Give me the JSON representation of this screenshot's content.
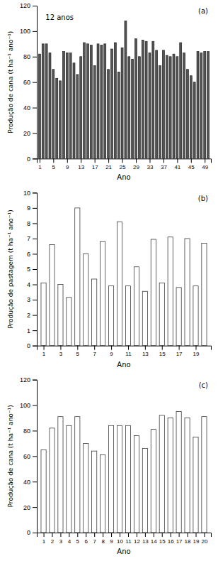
{
  "chart_data": [
    {
      "type": "bar",
      "title": "(a)",
      "annotations": [
        "12 anos"
      ],
      "xlabel": "Ano",
      "ylabel": "Produção de cana (t ha⁻¹ ano⁻¹)",
      "color": "#555555",
      "x": [
        1,
        2,
        3,
        4,
        5,
        6,
        7,
        8,
        9,
        10,
        11,
        12,
        13,
        14,
        15,
        16,
        17,
        18,
        19,
        20,
        21,
        22,
        23,
        24,
        25,
        26,
        27,
        28,
        29,
        30,
        31,
        32,
        33,
        34,
        35,
        36,
        37,
        38,
        39,
        40,
        41,
        42,
        43,
        44,
        45,
        46,
        47,
        48,
        49,
        50
      ],
      "values": [
        82,
        90,
        90,
        83,
        70,
        63,
        61,
        84,
        83,
        83,
        75,
        66,
        80,
        91,
        90,
        89,
        73,
        90,
        89,
        90,
        70,
        86,
        91,
        68,
        87,
        108,
        80,
        78,
        94,
        80,
        93,
        92,
        83,
        92,
        85,
        73,
        85,
        81,
        80,
        82,
        80,
        91,
        83,
        70,
        65,
        60,
        84,
        83,
        84,
        84
      ],
      "xlim": [
        0.2,
        50.8
      ],
      "xticks": [
        1,
        5,
        9,
        13,
        17,
        21,
        25,
        29,
        33,
        37,
        41,
        45,
        49
      ],
      "ylim": [
        0,
        120
      ],
      "yticks": [
        0,
        20,
        40,
        60,
        80,
        100,
        120
      ]
    },
    {
      "type": "bar",
      "title": "(b)",
      "xlabel": "Ano",
      "ylabel": "Produção de pastagem (t ha⁻¹ ano⁻¹)",
      "color": "#ffffff",
      "x": [
        1,
        2,
        3,
        4,
        5,
        6,
        7,
        8,
        9,
        10,
        11,
        12,
        13,
        14,
        15,
        16,
        17,
        18,
        19,
        20
      ],
      "values": [
        4.1,
        6.6,
        4.0,
        3.15,
        9.0,
        6.0,
        4.35,
        6.8,
        3.9,
        8.1,
        3.9,
        5.15,
        3.55,
        6.95,
        4.1,
        7.1,
        3.8,
        7.0,
        3.9,
        6.7
      ],
      "xlim": [
        0.2,
        20.8
      ],
      "xticks": [
        1,
        3,
        5,
        7,
        9,
        11,
        13,
        15,
        17,
        19
      ],
      "ylim": [
        0,
        10
      ],
      "yticks": [
        0,
        1,
        2,
        3,
        4,
        5,
        6,
        7,
        8,
        9,
        10
      ]
    },
    {
      "type": "bar",
      "title": "(c)",
      "xlabel": "Ano",
      "ylabel": "Produção de cana (t ha⁻¹ ano⁻¹)",
      "color": "#ffffff",
      "x": [
        1,
        2,
        3,
        4,
        5,
        6,
        7,
        8,
        9,
        10,
        11,
        12,
        13,
        14,
        15,
        16,
        17,
        18,
        19,
        20
      ],
      "values": [
        65,
        82,
        91,
        84,
        91,
        70,
        64,
        61,
        84,
        84,
        84,
        76,
        66,
        81,
        92,
        90,
        95,
        90,
        75,
        91
      ],
      "xlim": [
        0.2,
        20.8
      ],
      "xticks": [
        1,
        2,
        3,
        4,
        5,
        6,
        7,
        8,
        9,
        10,
        11,
        12,
        13,
        14,
        15,
        16,
        17,
        18,
        19,
        20
      ],
      "ylim": [
        0,
        120
      ],
      "yticks": [
        0,
        20,
        40,
        60,
        80,
        100,
        120
      ]
    }
  ]
}
